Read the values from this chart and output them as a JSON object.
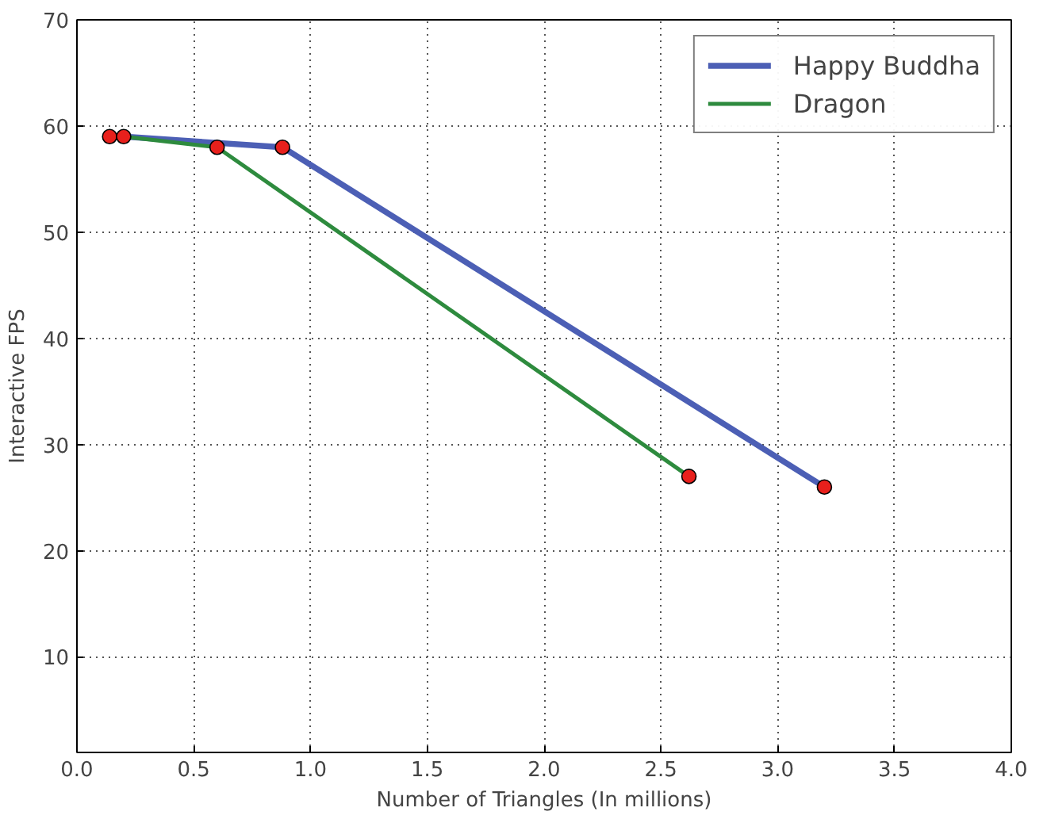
{
  "chart_data": {
    "type": "line",
    "xlabel": "Number of Triangles (In millions)",
    "ylabel": "Interactive FPS",
    "xlim": [
      0,
      4
    ],
    "ylim": [
      1,
      70
    ],
    "xticks": [
      {
        "value": 0,
        "label": "0.0"
      },
      {
        "value": 0.5,
        "label": "0.5"
      },
      {
        "value": 1,
        "label": "1.0"
      },
      {
        "value": 1.5,
        "label": "1.5"
      },
      {
        "value": 2,
        "label": "2.0"
      },
      {
        "value": 2.5,
        "label": "2.5"
      },
      {
        "value": 3,
        "label": "3.0"
      },
      {
        "value": 3.5,
        "label": "3.5"
      },
      {
        "value": 4,
        "label": "4.0"
      }
    ],
    "yticks": [
      10,
      20,
      30,
      40,
      50,
      60,
      70
    ],
    "grid": true,
    "legend": "top right",
    "marker": "none",
    "series": [
      {
        "name": "Happy Buddha",
        "color": "#4c5fb5",
        "x": [
          0.14,
          0.2,
          0.88,
          3.2
        ],
        "values": [
          59,
          59,
          58,
          26
        ]
      },
      {
        "name": "Dragon",
        "color": "#2e8b3e",
        "x": [
          0.14,
          0.2,
          0.6,
          2.62
        ],
        "values": [
          59,
          59,
          58,
          27
        ]
      },
      {
        "type": "scatter",
        "marker": "circle",
        "color": "#e8201c",
        "x": [
          0.14,
          0.2,
          0.6,
          0.88,
          2.62,
          3.2
        ],
        "values": [
          59,
          59,
          58,
          58,
          27,
          26
        ]
      }
    ]
  }
}
